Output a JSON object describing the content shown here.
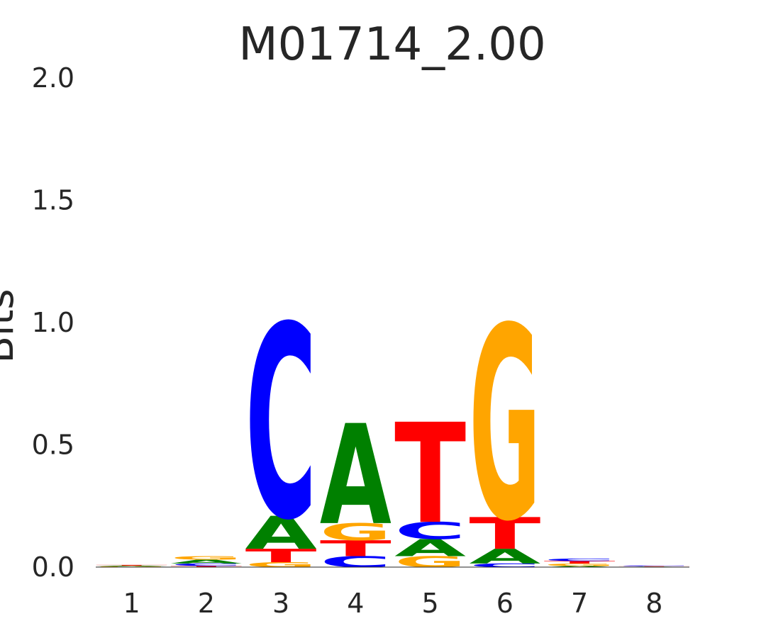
{
  "chart_data": {
    "type": "sequence-logo",
    "title": "M01714_2.00",
    "ylabel": "Bits",
    "xlabel": "",
    "ylim": [
      0,
      2
    ],
    "yticks": [
      "0.0",
      "0.5",
      "1.0",
      "1.5",
      "2.0"
    ],
    "positions": [
      "1",
      "2",
      "3",
      "4",
      "5",
      "6",
      "7",
      "8"
    ],
    "grid": false,
    "colors": {
      "A": "#008000",
      "C": "#0000ff",
      "G": "#ffa500",
      "T": "#ff0000"
    },
    "stacks": [
      [
        {
          "letter": "G",
          "bits": 0.003
        },
        {
          "letter": "A",
          "bits": 0.003
        },
        {
          "letter": "T",
          "bits": 0.003
        }
      ],
      [
        {
          "letter": "T",
          "bits": 0.005
        },
        {
          "letter": "C",
          "bits": 0.01
        },
        {
          "letter": "A",
          "bits": 0.015
        },
        {
          "letter": "G",
          "bits": 0.015
        }
      ],
      [
        {
          "letter": "G",
          "bits": 0.02
        },
        {
          "letter": "T",
          "bits": 0.055
        },
        {
          "letter": "A",
          "bits": 0.135
        },
        {
          "letter": "C",
          "bits": 0.79
        }
      ],
      [
        {
          "letter": "C",
          "bits": 0.045
        },
        {
          "letter": "T",
          "bits": 0.065
        },
        {
          "letter": "G",
          "bits": 0.07
        },
        {
          "letter": "A",
          "bits": 0.41
        }
      ],
      [
        {
          "letter": "G",
          "bits": 0.045
        },
        {
          "letter": "A",
          "bits": 0.07
        },
        {
          "letter": "C",
          "bits": 0.07
        },
        {
          "letter": "T",
          "bits": 0.41
        }
      ],
      [
        {
          "letter": "C",
          "bits": 0.015
        },
        {
          "letter": "A",
          "bits": 0.06
        },
        {
          "letter": "T",
          "bits": 0.13
        },
        {
          "letter": "G",
          "bits": 0.79
        }
      ],
      [
        {
          "letter": "A",
          "bits": 0.005
        },
        {
          "letter": "G",
          "bits": 0.01
        },
        {
          "letter": "T",
          "bits": 0.01
        },
        {
          "letter": "C",
          "bits": 0.01
        }
      ],
      [
        {
          "letter": "A",
          "bits": 0.002
        },
        {
          "letter": "T",
          "bits": 0.002
        },
        {
          "letter": "C",
          "bits": 0.003
        }
      ]
    ]
  }
}
